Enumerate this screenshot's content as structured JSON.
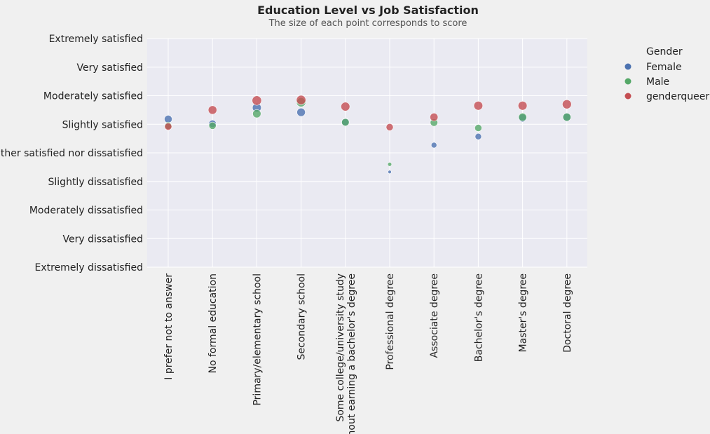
{
  "chart_data": {
    "type": "scatter",
    "title": "Education Level vs Job Satisfaction",
    "subtitle": "The size of each point corresponds to score",
    "xlabel": "",
    "ylabel": "",
    "categories": [
      "I prefer not to answer",
      "No formal education",
      "Primary/elementary school",
      "Secondary school",
      "Some college/university study\nwithout earning a bachelor's degree",
      "Professional degree",
      "Associate degree",
      "Bachelor's degree",
      "Master's degree",
      "Doctoral degree"
    ],
    "y_categories": [
      "Extremely dissatisfied",
      "Very dissatisfied",
      "Moderately dissatisfied",
      "Slightly dissatisfied",
      "Neither satisfied nor dissatisfied",
      "Slightly satisfied",
      "Moderately satisfied",
      "Very satisfied",
      "Extremely satisfied"
    ],
    "ylim": [
      0,
      8
    ],
    "grid": true,
    "legend": {
      "title": "Gender",
      "placement": "right"
    },
    "series": [
      {
        "name": "Female",
        "color": "#4c72b0",
        "values": [
          5.18,
          5.02,
          5.58,
          5.42,
          5.08,
          3.33,
          4.27,
          4.57,
          5.22,
          5.25
        ],
        "sizes": [
          5.18,
          5.02,
          5.58,
          5.42,
          5.08,
          3.33,
          4.27,
          4.57,
          5.22,
          5.25
        ]
      },
      {
        "name": "Male",
        "color": "#55a868",
        "values": [
          4.95,
          4.95,
          5.37,
          5.77,
          5.07,
          3.6,
          5.06,
          4.87,
          5.25,
          5.25
        ],
        "sizes": [
          4.95,
          4.95,
          5.37,
          5.77,
          5.07,
          3.6,
          5.06,
          4.87,
          5.25,
          5.25
        ]
      },
      {
        "name": "genderqueer",
        "color": "#c44e52",
        "values": [
          4.92,
          5.5,
          5.83,
          5.85,
          5.62,
          4.9,
          5.25,
          5.65,
          5.65,
          5.7
        ],
        "sizes": [
          4.92,
          5.5,
          5.83,
          5.85,
          5.62,
          4.9,
          5.25,
          5.65,
          5.65,
          5.7
        ]
      }
    ]
  }
}
